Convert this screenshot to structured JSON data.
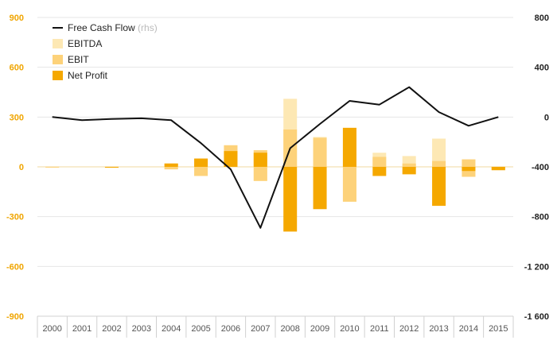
{
  "chart_data": {
    "type": "bar",
    "categories": [
      "2000",
      "2001",
      "2002",
      "2003",
      "2004",
      "2005",
      "2006",
      "2007",
      "2008",
      "2009",
      "2010",
      "2011",
      "2012",
      "2013",
      "2014",
      "2015"
    ],
    "ylim": [
      -900,
      900
    ],
    "y2lim": [
      -1600,
      800
    ],
    "yticks": [
      "900",
      "600",
      "300",
      "0",
      "-300",
      "-600",
      "-900"
    ],
    "y2ticks": [
      "800",
      "400",
      "0",
      "-400",
      "-800",
      "-1 200",
      "-1 600"
    ],
    "grid": true,
    "legend_position": "top-left",
    "series": [
      {
        "name": "EBITDA",
        "kind": "bar",
        "color": "#fde8b4",
        "values": [
          0,
          0,
          0,
          0,
          20,
          50,
          130,
          100,
          410,
          180,
          235,
          85,
          65,
          170,
          45,
          -5
        ]
      },
      {
        "name": "EBITDA",
        "kind": "bar-negative",
        "color": "#fde8b4",
        "values": [
          -3,
          0,
          0,
          0,
          -15,
          -55,
          0,
          -85,
          0,
          0,
          -210,
          0,
          0,
          0,
          -60,
          -20
        ]
      },
      {
        "name": "EBIT",
        "kind": "bar",
        "color": "#fdd27a",
        "values": [
          0,
          0,
          -5,
          0,
          20,
          50,
          130,
          100,
          225,
          175,
          235,
          60,
          20,
          35,
          45,
          -5
        ]
      },
      {
        "name": "EBIT",
        "kind": "bar-negative",
        "color": "#fdd27a",
        "values": [
          -3,
          0,
          -5,
          0,
          -15,
          -55,
          0,
          -85,
          0,
          0,
          -210,
          0,
          0,
          0,
          -60,
          -20
        ]
      },
      {
        "name": "Net Profit",
        "kind": "bar",
        "color": "#f5a800",
        "values": [
          0,
          0,
          -5,
          0,
          20,
          50,
          95,
          85,
          -390,
          -255,
          235,
          -55,
          -45,
          -235,
          -25,
          -20
        ]
      },
      {
        "name": "Free Cash Flow",
        "kind": "line",
        "axis": "right",
        "color": "#111111",
        "values": [
          0,
          -25,
          -15,
          -10,
          -25,
          -210,
          -420,
          -890,
          -250,
          -55,
          130,
          100,
          240,
          40,
          -70,
          0
        ]
      }
    ],
    "legend": [
      {
        "label": "Free Cash Flow",
        "note": "(rhs)",
        "swatch": "line",
        "color": "#111111"
      },
      {
        "label": "EBITDA",
        "note": "",
        "swatch": "box",
        "color": "#fde8b4"
      },
      {
        "label": "EBIT",
        "note": "",
        "swatch": "box",
        "color": "#fdd27a"
      },
      {
        "label": "Net Profit",
        "note": "",
        "swatch": "box",
        "color": "#f5a800"
      }
    ]
  }
}
